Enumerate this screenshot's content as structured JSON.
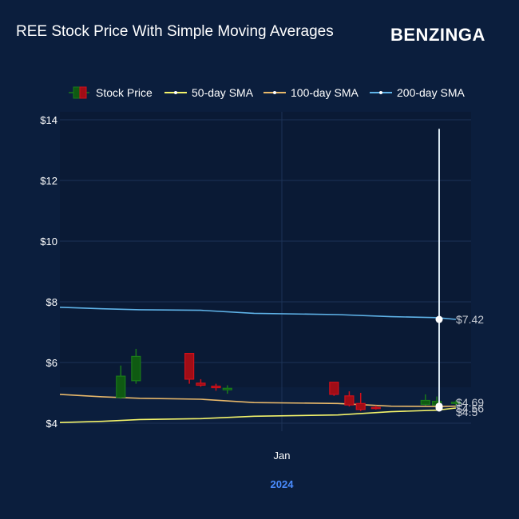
{
  "title": "REE Stock Price With Simple Moving Averages",
  "brand": "Benzinga",
  "colors": {
    "background": "#0b1e3d",
    "up": "#1a7a1a",
    "down": "#d0101a",
    "sma50": "#f3f36a",
    "sma100": "#e8b86a",
    "sma200": "#5fb3e8",
    "year_label": "#4a8cff"
  },
  "chart_data": {
    "type": "candlestick",
    "y_tick_labels": [
      "$4",
      "$6",
      "$8",
      "$10",
      "$12",
      "$14"
    ],
    "y_ticks": [
      4,
      6,
      8,
      10,
      12,
      14
    ],
    "ylim": [
      3.9,
      14.1
    ],
    "x_tick_label": "Jan",
    "year_label": "2024",
    "legend": [
      {
        "key": "candle",
        "label": "Stock Price"
      },
      {
        "key": "sma50",
        "label": "50-day SMA"
      },
      {
        "key": "sma100",
        "label": "100-day SMA"
      },
      {
        "key": "sma200",
        "label": "200-day SMA"
      }
    ],
    "legend_position": "top",
    "grid": true,
    "candles": [
      {
        "date": "2023-11-10",
        "open": 4.85,
        "close": 5.55,
        "high": 5.9,
        "low": 4.8
      },
      {
        "date": "2023-11-14",
        "open": 5.4,
        "close": 6.2,
        "high": 6.45,
        "low": 5.3
      },
      {
        "date": "2023-11-28",
        "open": 6.3,
        "close": 5.45,
        "high": 6.3,
        "low": 5.3
      },
      {
        "date": "2023-12-01",
        "open": 5.32,
        "close": 5.25,
        "high": 5.45,
        "low": 5.2
      },
      {
        "date": "2023-12-05",
        "open": 5.22,
        "close": 5.17,
        "high": 5.3,
        "low": 5.07
      },
      {
        "date": "2023-12-08",
        "open": 5.1,
        "close": 5.15,
        "high": 5.25,
        "low": 4.97
      },
      {
        "date": "2024-01-05",
        "open": 5.35,
        "close": 4.95,
        "high": 5.35,
        "low": 4.9
      },
      {
        "date": "2024-01-09",
        "open": 4.9,
        "close": 4.6,
        "high": 5.05,
        "low": 4.55
      },
      {
        "date": "2024-01-12",
        "open": 4.65,
        "close": 4.45,
        "high": 5.0,
        "low": 4.4
      },
      {
        "date": "2024-01-16",
        "open": 4.52,
        "close": 4.5,
        "high": 4.58,
        "low": 4.45
      },
      {
        "date": "2024-01-29",
        "open": 4.62,
        "close": 4.75,
        "high": 4.95,
        "low": 4.58
      },
      {
        "date": "2024-02-01",
        "open": 4.6,
        "close": 4.72,
        "high": 4.88,
        "low": 4.55
      },
      {
        "date": "2024-02-06",
        "open": 4.68,
        "close": 4.69,
        "high": 4.75,
        "low": 4.58
      }
    ],
    "sma50": {
      "dates": [
        "2023-10-25",
        "2023-11-05",
        "2023-11-15",
        "2023-12-01",
        "2023-12-15",
        "2024-01-06",
        "2024-01-20",
        "2024-02-01",
        "2024-02-06"
      ],
      "values": [
        4.02,
        4.06,
        4.12,
        4.15,
        4.23,
        4.27,
        4.38,
        4.43,
        4.5
      ]
    },
    "sma100": {
      "dates": [
        "2023-10-25",
        "2023-11-05",
        "2023-11-15",
        "2023-12-01",
        "2023-12-15",
        "2024-01-06",
        "2024-01-20",
        "2024-02-01",
        "2024-02-06"
      ],
      "values": [
        4.95,
        4.87,
        4.82,
        4.79,
        4.68,
        4.65,
        4.56,
        4.55,
        4.56
      ]
    },
    "sma200": {
      "dates": [
        "2023-10-25",
        "2023-11-05",
        "2023-11-15",
        "2023-12-01",
        "2023-12-15",
        "2024-01-06",
        "2024-01-20",
        "2024-02-01",
        "2024-02-06"
      ],
      "values": [
        7.82,
        7.77,
        7.74,
        7.72,
        7.62,
        7.58,
        7.51,
        7.48,
        7.42
      ]
    },
    "end_labels": [
      "$7.42",
      "$4.69",
      "$4.56",
      "$4.5"
    ],
    "end_label_values": [
      7.42,
      4.69,
      4.56,
      4.5
    ],
    "spike_top": 13.7
  }
}
